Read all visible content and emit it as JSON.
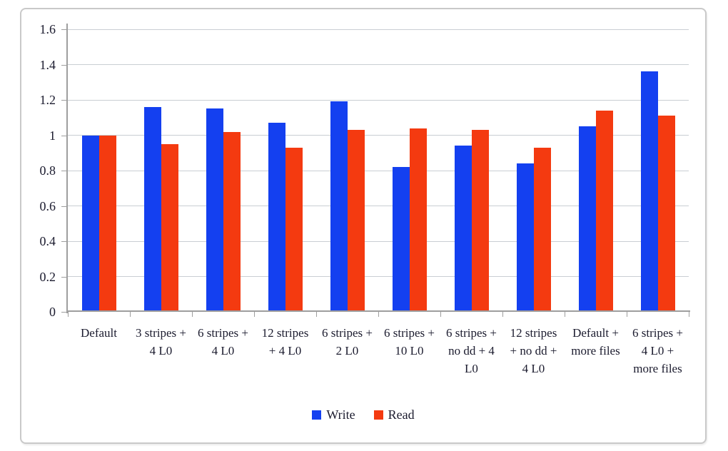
{
  "chart_data": {
    "type": "bar",
    "title": "",
    "xlabel": "",
    "ylabel": "",
    "categories": [
      "Default",
      "3 stripes + 4 L0",
      "6 stripes + 4 L0",
      "12 stripes + 4 L0",
      "6 stripes + 2 L0",
      "6 stripes + 10 L0",
      "6 stripes + no dd + 4 L0",
      "12 stripes + no dd + 4 L0",
      "Default + more files",
      "6 stripes + 4 L0 + more files"
    ],
    "series": [
      {
        "name": "Write",
        "color": "#1440F0",
        "values": [
          1.0,
          1.16,
          1.15,
          1.07,
          1.19,
          0.82,
          0.94,
          0.84,
          1.05,
          1.36
        ]
      },
      {
        "name": "Read",
        "color": "#F43A10",
        "values": [
          1.0,
          0.95,
          1.02,
          0.93,
          1.03,
          1.04,
          1.03,
          0.93,
          1.14,
          1.11
        ]
      }
    ],
    "ylim": [
      0,
      1.6
    ],
    "ytick_step": 0.2,
    "yticks": [
      {
        "value": 0.0,
        "label": "0"
      },
      {
        "value": 0.2,
        "label": "0.2"
      },
      {
        "value": 0.4,
        "label": "0.4"
      },
      {
        "value": 0.6,
        "label": "0.6"
      },
      {
        "value": 0.8,
        "label": "0.8"
      },
      {
        "value": 1.0,
        "label": "1"
      },
      {
        "value": 1.2,
        "label": "1.2"
      },
      {
        "value": 1.4,
        "label": "1.4"
      },
      {
        "value": 1.6,
        "label": "1.6"
      }
    ],
    "grid": true,
    "legend_position": "bottom",
    "colors": {
      "axis": "#9e9e9e",
      "gridline": "#c9ced3",
      "text": "#1b1b2e",
      "frame_border": "#c9c9c9",
      "background": "#ffffff"
    }
  }
}
